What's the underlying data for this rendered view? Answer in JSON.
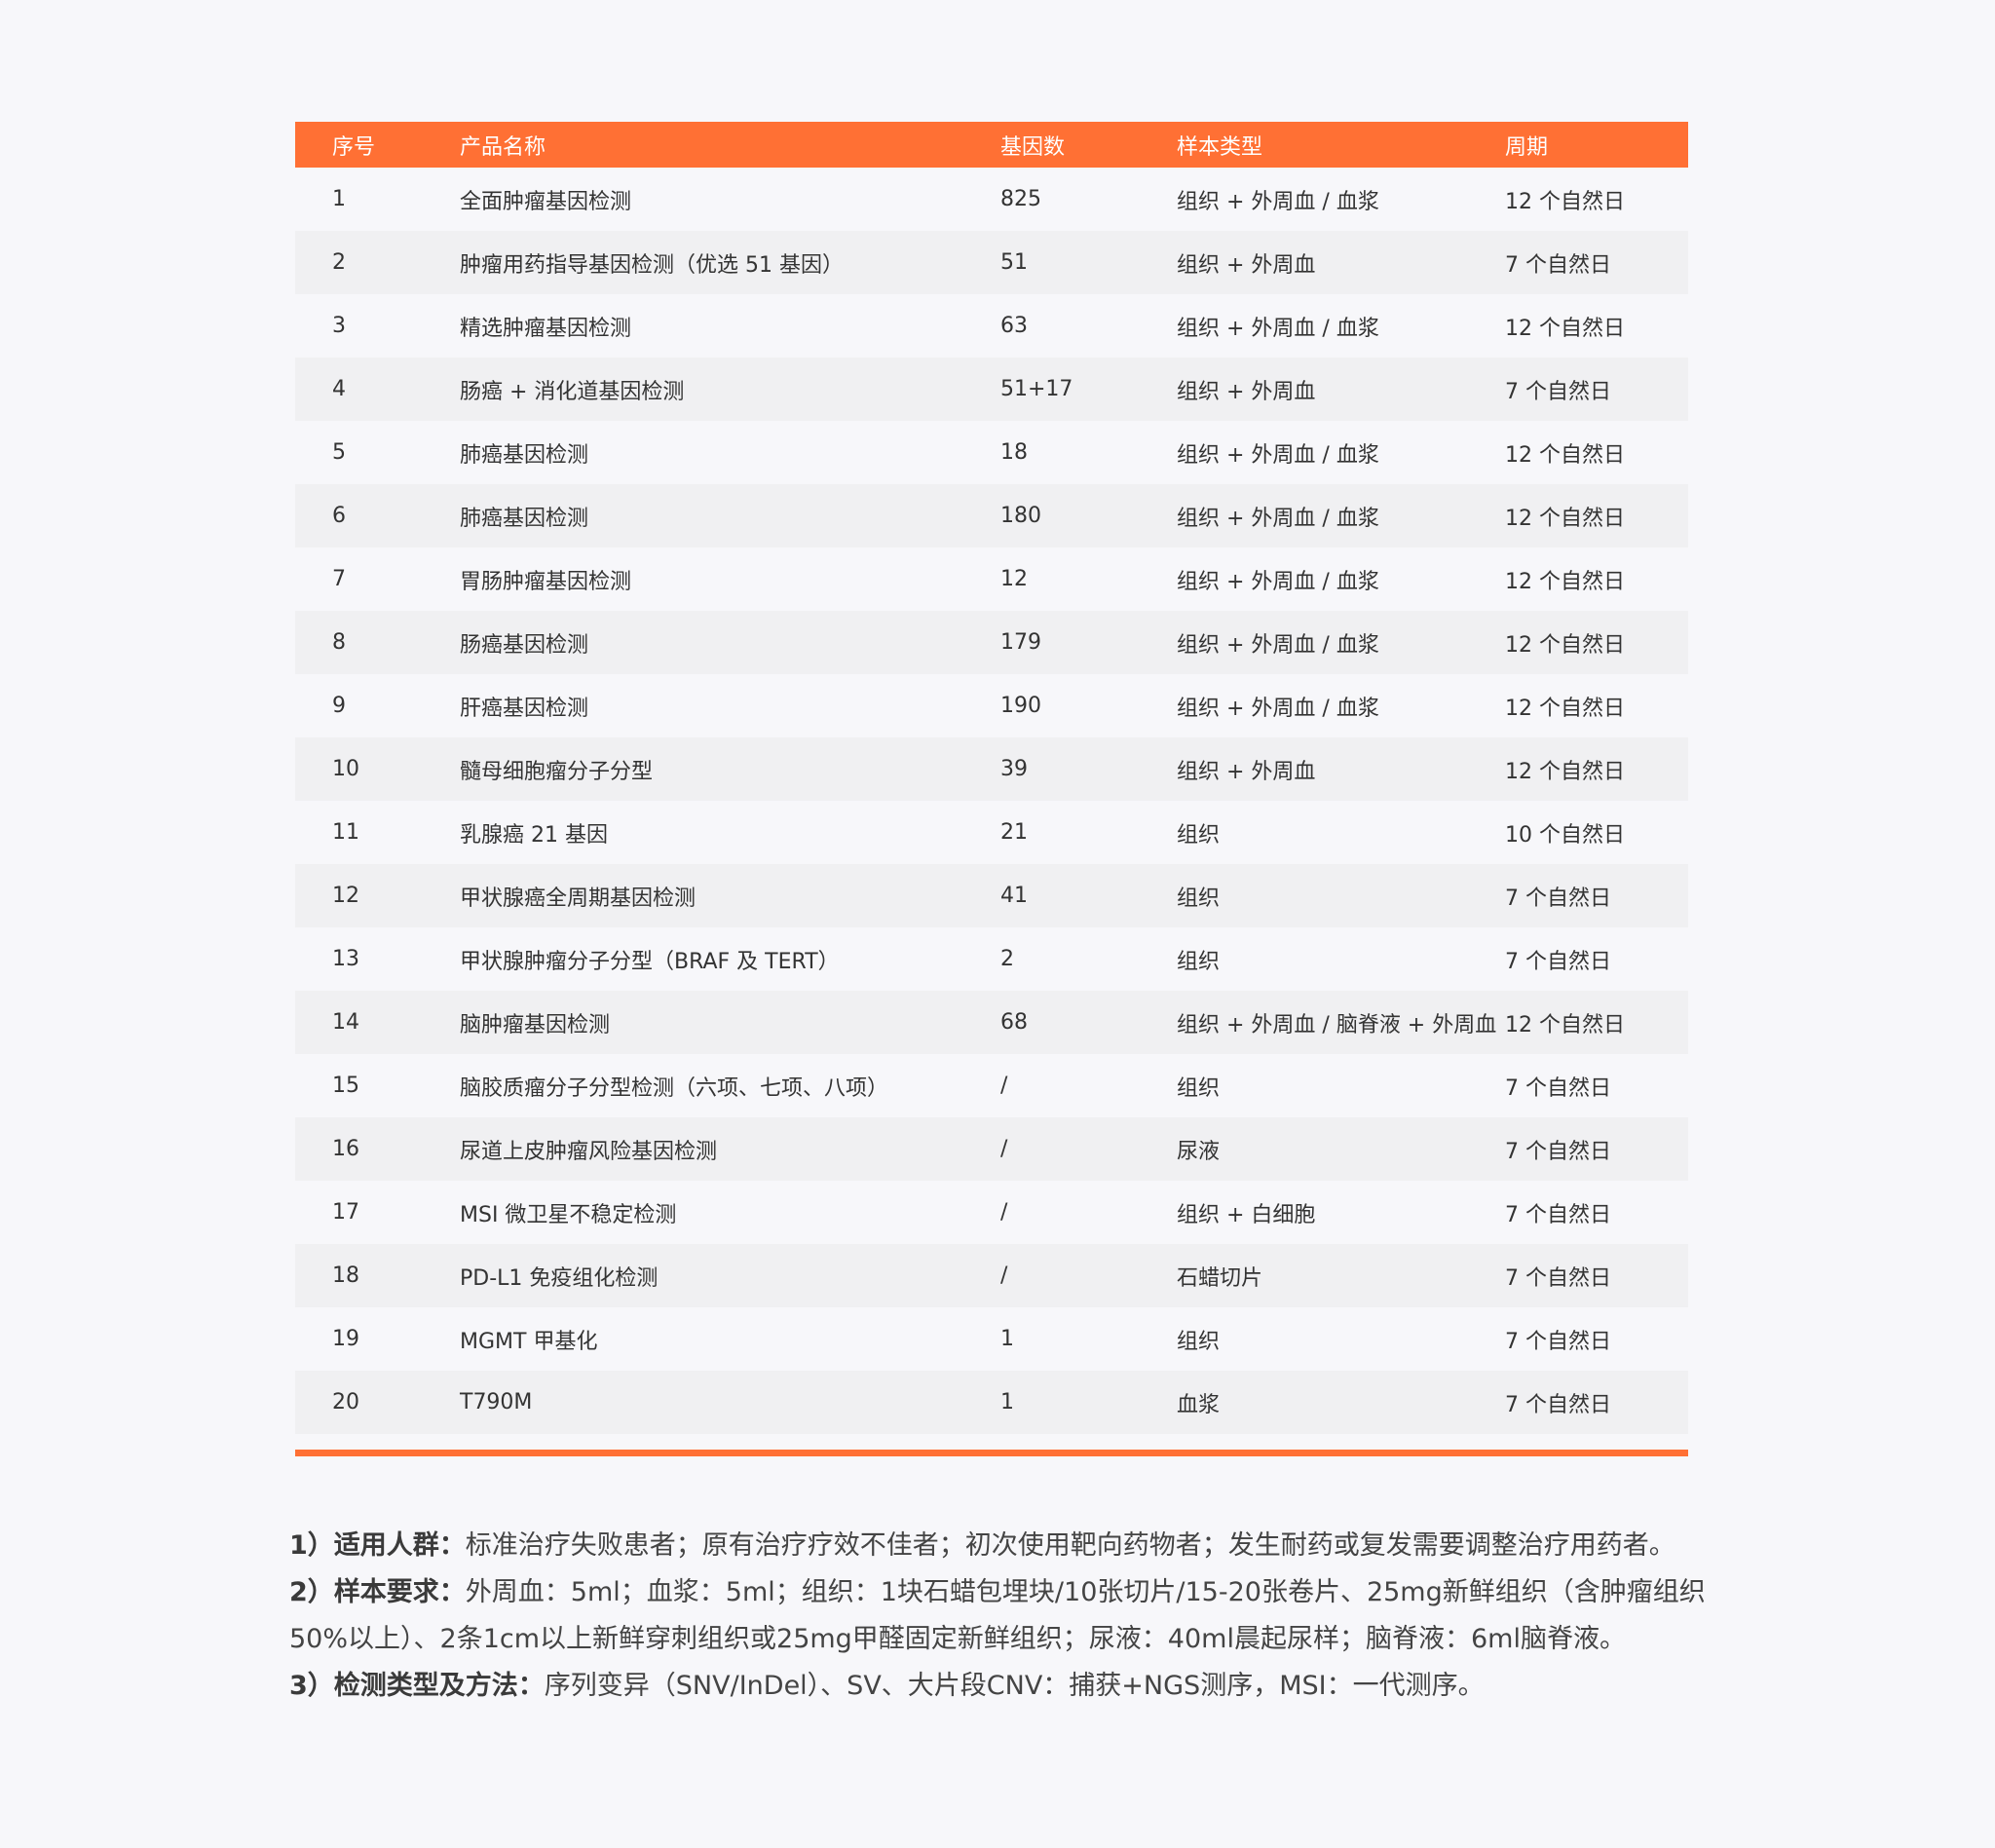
{
  "table": {
    "headers": [
      "序号",
      "产品名称",
      "基因数",
      "样本类型",
      "周期"
    ],
    "rows": [
      {
        "no": "1",
        "name": "全面肿瘤基因检测",
        "genes": "825",
        "sample": "组织 + 外周血 / 血浆",
        "period": "12 个自然日"
      },
      {
        "no": "2",
        "name": "肿瘤用药指导基因检测（优选 51 基因）",
        "genes": "51",
        "sample": "组织 + 外周血",
        "period": "7 个自然日"
      },
      {
        "no": "3",
        "name": "精选肿瘤基因检测",
        "genes": "63",
        "sample": "组织 + 外周血 / 血浆",
        "period": "12 个自然日"
      },
      {
        "no": "4",
        "name": "肠癌 + 消化道基因检测",
        "genes": "51+17",
        "sample": "组织 + 外周血",
        "period": "7 个自然日"
      },
      {
        "no": "5",
        "name": "肺癌基因检测",
        "genes": "18",
        "sample": "组织 + 外周血 / 血浆",
        "period": "12 个自然日"
      },
      {
        "no": "6",
        "name": "肺癌基因检测",
        "genes": "180",
        "sample": "组织 + 外周血 / 血浆",
        "period": "12 个自然日"
      },
      {
        "no": "7",
        "name": "胃肠肿瘤基因检测",
        "genes": "12",
        "sample": "组织 + 外周血 / 血浆",
        "period": "12 个自然日"
      },
      {
        "no": "8",
        "name": "肠癌基因检测",
        "genes": "179",
        "sample": "组织 + 外周血 / 血浆",
        "period": "12 个自然日"
      },
      {
        "no": "9",
        "name": "肝癌基因检测",
        "genes": "190",
        "sample": "组织 + 外周血 / 血浆",
        "period": "12 个自然日"
      },
      {
        "no": "10",
        "name": "髓母细胞瘤分子分型",
        "genes": "39",
        "sample": "组织 + 外周血",
        "period": "12 个自然日"
      },
      {
        "no": "11",
        "name": "乳腺癌 21 基因",
        "genes": "21",
        "sample": "组织",
        "period": "10 个自然日"
      },
      {
        "no": "12",
        "name": "甲状腺癌全周期基因检测",
        "genes": "41",
        "sample": "组织",
        "period": "7 个自然日"
      },
      {
        "no": "13",
        "name": "甲状腺肿瘤分子分型（BRAF 及 TERT）",
        "genes": "2",
        "sample": "组织",
        "period": "7 个自然日"
      },
      {
        "no": "14",
        "name": "脑肿瘤基因检测",
        "genes": "68",
        "sample": "组织 + 外周血 / 脑脊液 + 外周血",
        "period": "12 个自然日"
      },
      {
        "no": "15",
        "name": "脑胶质瘤分子分型检测（六项、七项、八项）",
        "genes": "/",
        "sample": "组织",
        "period": "7 个自然日"
      },
      {
        "no": "16",
        "name": "尿道上皮肿瘤风险基因检测",
        "genes": "/",
        "sample": "尿液",
        "period": "7 个自然日"
      },
      {
        "no": "17",
        "name": "MSI 微卫星不稳定检测",
        "genes": "/",
        "sample": "组织 + 白细胞",
        "period": "7 个自然日"
      },
      {
        "no": "18",
        "name": "PD-L1 免疫组化检测",
        "genes": "/",
        "sample": "石蜡切片",
        "period": "7 个自然日"
      },
      {
        "no": "19",
        "name": "MGMT 甲基化",
        "genes": "1",
        "sample": "组织",
        "period": "7 个自然日"
      },
      {
        "no": "20",
        "name": "T790M",
        "genes": "1",
        "sample": "血浆",
        "period": "7 个自然日"
      }
    ]
  },
  "notes": [
    {
      "label": "1）适用人群：",
      "text": "标准治疗失败患者；原有治疗疗效不佳者；初次使用靶向药物者；发生耐药或复发需要调整治疗用药者。"
    },
    {
      "label": "2）样本要求：",
      "text": "外周血：5ml；血浆：5ml；组织：1块石蜡包埋块/10张切片/15-20张卷片、25mg新鲜组织（含肿瘤组织50%以上）、2条1cm以上新鲜穿刺组织或25mg甲醛固定新鲜组织；尿液：40ml晨起尿样；脑脊液：6ml脑脊液。"
    },
    {
      "label": "3）检测类型及方法：",
      "text": "序列变异（SNV/InDel）、SV、大片段CNV：捕获+NGS测序，MSI：一代测序。"
    }
  ],
  "colors": {
    "accent": "#ff7034",
    "background": "#f7f7fa",
    "row_alt": "#f0f0f2"
  }
}
